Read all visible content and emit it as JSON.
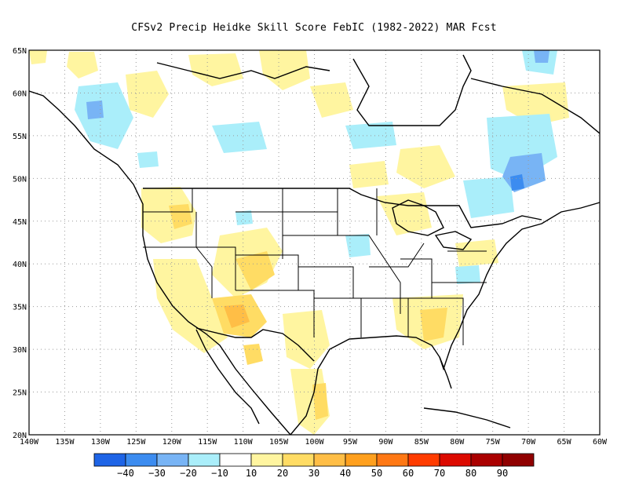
{
  "title": "CFSv2 Precip Heidke Skill Score FebIC (1982-2022) MAR Fcst",
  "lon_labels": [
    "140W",
    "135W",
    "130W",
    "125W",
    "120W",
    "115W",
    "110W",
    "105W",
    "100W",
    "95W",
    "90W",
    "85W",
    "80W",
    "75W",
    "70W",
    "65W",
    "60W"
  ],
  "lat_labels": [
    "65N",
    "60N",
    "55N",
    "50N",
    "45N",
    "40N",
    "35N",
    "30N",
    "25N",
    "20N"
  ],
  "colorbar": {
    "labels": [
      "−40",
      "−30",
      "−20",
      "−10",
      "10",
      "20",
      "30",
      "40",
      "50",
      "60",
      "70",
      "80",
      "90"
    ],
    "colors": [
      "#1e64e6",
      "#3c8cf0",
      "#78b4f5",
      "#aaeefa",
      "#ffffff",
      "#fff5a0",
      "#ffdc64",
      "#ffbe46",
      "#ffa01e",
      "#ff7814",
      "#ff3c00",
      "#dc0a00",
      "#aa0000",
      "#900000"
    ]
  },
  "legend_colors": {
    "pos_light": "#fff5a0",
    "pos_mid": "#ffdc64",
    "pos_strong": "#ffbe46",
    "pos_orange": "#ffa01e",
    "neg_light": "#aaeefa",
    "neg_mid": "#78b4f5",
    "neg_strong": "#3c8cf0"
  }
}
